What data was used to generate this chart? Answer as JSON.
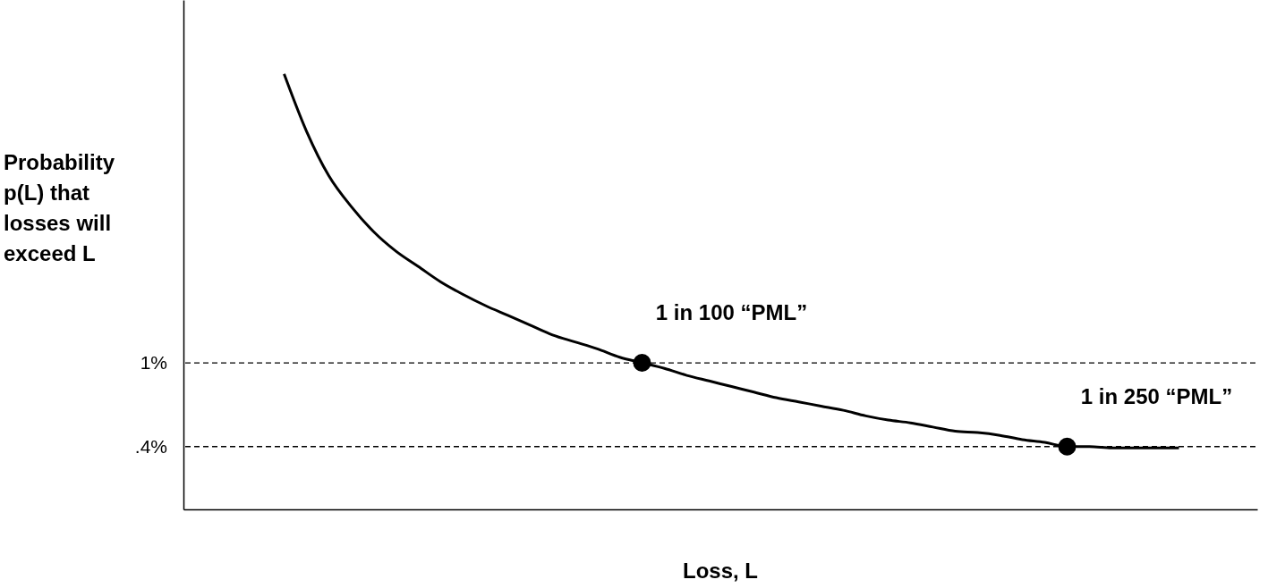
{
  "chart_data": {
    "type": "line",
    "ylabel": "Probability p(L) that losses will exceed L",
    "xlabel": "Loss, L",
    "categories": [
      null,
      null,
      null,
      null,
      null,
      null,
      null,
      null,
      null,
      null,
      null,
      null,
      null,
      null,
      null,
      null,
      null,
      null,
      null,
      null,
      null,
      null,
      null,
      null,
      null,
      null,
      null,
      null,
      null,
      null,
      null,
      null,
      null,
      null,
      null,
      null,
      null,
      null,
      null,
      null,
      null,
      null,
      null,
      null,
      null,
      null,
      null,
      null
    ],
    "series": [
      {
        "color": "#000000",
        "values": [
          null,
          null,
          null,
          null,
          3.07,
          2.66,
          2.34,
          2.12,
          1.94,
          1.8,
          1.69,
          1.58,
          1.49,
          1.41,
          1.34,
          1.27,
          1.2,
          1.15,
          1.1,
          1.04,
          1.0,
          0.96,
          0.91,
          0.87,
          0.83,
          0.79,
          0.75,
          0.72,
          0.69,
          0.66,
          0.62,
          0.59,
          0.57,
          0.54,
          0.51,
          0.5,
          0.48,
          0.45,
          0.43,
          0.4,
          0.4,
          0.39,
          0.39,
          0.39,
          0.39,
          null,
          null,
          null
        ]
      },
      {
        "type": "scatter",
        "color": "#000000",
        "marker": "circle",
        "values": [
          null,
          null,
          null,
          null,
          null,
          null,
          null,
          null,
          null,
          null,
          null,
          null,
          null,
          null,
          null,
          null,
          null,
          null,
          null,
          null,
          1.0,
          null,
          null,
          null,
          null,
          null,
          null,
          null,
          null,
          null,
          null,
          null,
          null,
          null,
          null,
          null,
          null,
          null,
          null,
          0.4,
          null,
          null,
          null,
          null,
          null,
          null,
          null,
          null
        ]
      }
    ],
    "ylim": [
      -0.05,
      3.6
    ],
    "yticks": [
      {
        "value": 1,
        "label": "1%"
      },
      {
        "value": 0.4,
        "label": ".4%"
      }
    ],
    "ref_lines": [
      {
        "axis": "y",
        "value": 1,
        "line_style": "dashed",
        "color": "#000000"
      },
      {
        "axis": "y",
        "value": 0.4,
        "line_style": "dashed",
        "color": "#000000"
      }
    ],
    "annotations": [
      "1 in 100 “PML”",
      "1 in 250 “PML”"
    ],
    "grid": false
  }
}
